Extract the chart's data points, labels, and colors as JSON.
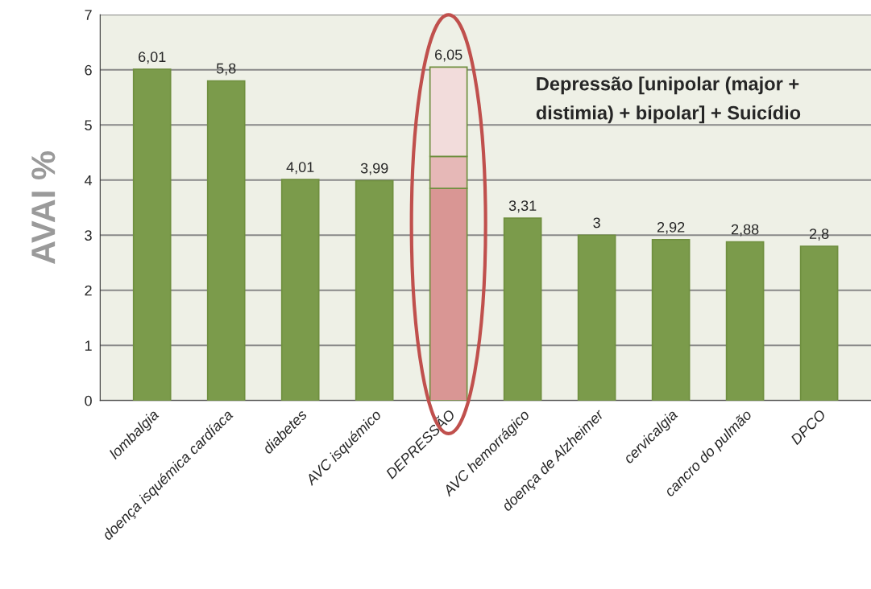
{
  "chart_data": {
    "type": "bar",
    "stacked": true,
    "ylabel": "AVAI %",
    "categories": [
      "lombalgia",
      "doença isquémica cardíaca",
      "diabetes",
      "AVC isquémico",
      "DEPRESSÃO",
      "AVC hemorrágico",
      "doença de Alzheimer",
      "cervicalgia",
      "cancro do pulmão",
      "DPCO"
    ],
    "series": [
      {
        "colors": [
          "#7b9b4b",
          "#7b9b4b",
          "#7b9b4b",
          "#7b9b4b",
          "#d99694",
          "#7b9b4b",
          "#7b9b4b",
          "#7b9b4b",
          "#7b9b4b",
          "#7b9b4b"
        ],
        "values": [
          6.01,
          5.8,
          4.01,
          3.99,
          3.85,
          3.31,
          3,
          2.92,
          2.88,
          2.8
        ]
      },
      {
        "color": "#e6b8b7",
        "values": [
          null,
          null,
          null,
          null,
          0.58,
          null,
          null,
          null,
          null,
          null
        ]
      },
      {
        "color": "#f2dcdb",
        "values": [
          null,
          null,
          null,
          null,
          1.62,
          null,
          null,
          null,
          null,
          null
        ]
      }
    ],
    "totals": [
      "6,01",
      "5,8",
      "4,01",
      "3,99",
      "6,05",
      "3,31",
      "3",
      "2,92",
      "2,88",
      "2,8"
    ],
    "annotations": [
      "Depressão [unipolar (major + distimia) + bipolar] + Suicídio"
    ],
    "ylim": [
      0,
      7
    ],
    "yticks": [
      0,
      1,
      2,
      3,
      4,
      5,
      6,
      7
    ],
    "grid": "y",
    "legend": false
  }
}
